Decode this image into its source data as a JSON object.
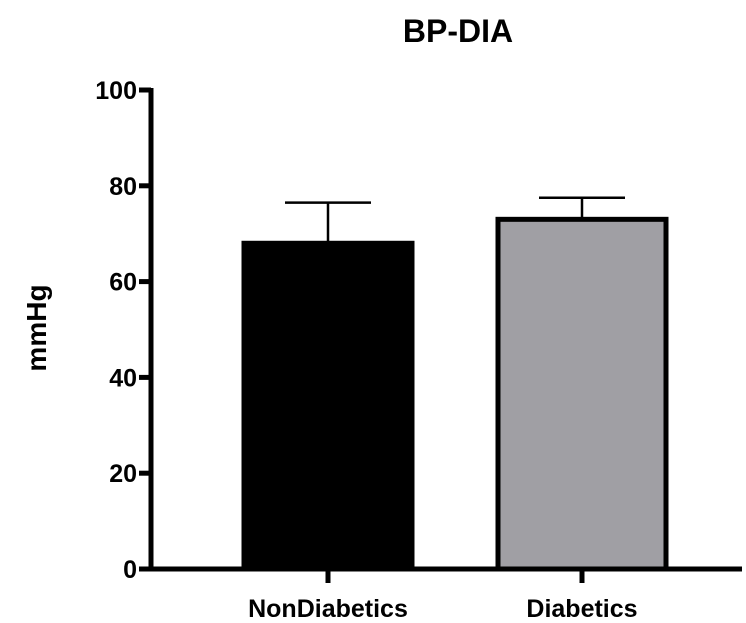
{
  "chart_data": {
    "type": "bar",
    "title": "BP-DIA",
    "xlabel": "",
    "ylabel": "mmHg",
    "categories": [
      "NonDiabetics",
      "Diabetics"
    ],
    "values": [
      68,
      73
    ],
    "error_upper": [
      76.5,
      77.5
    ],
    "ylim": [
      0,
      100
    ],
    "yticks": [
      0,
      20,
      40,
      60,
      80,
      100
    ],
    "ytick_labels": [
      "0",
      "20",
      "40",
      "60",
      "80",
      "100"
    ],
    "grid": false,
    "legend": "none",
    "bar_colors": [
      "#000000",
      "#a09fa4"
    ],
    "bar_edge_color": "#000000"
  }
}
